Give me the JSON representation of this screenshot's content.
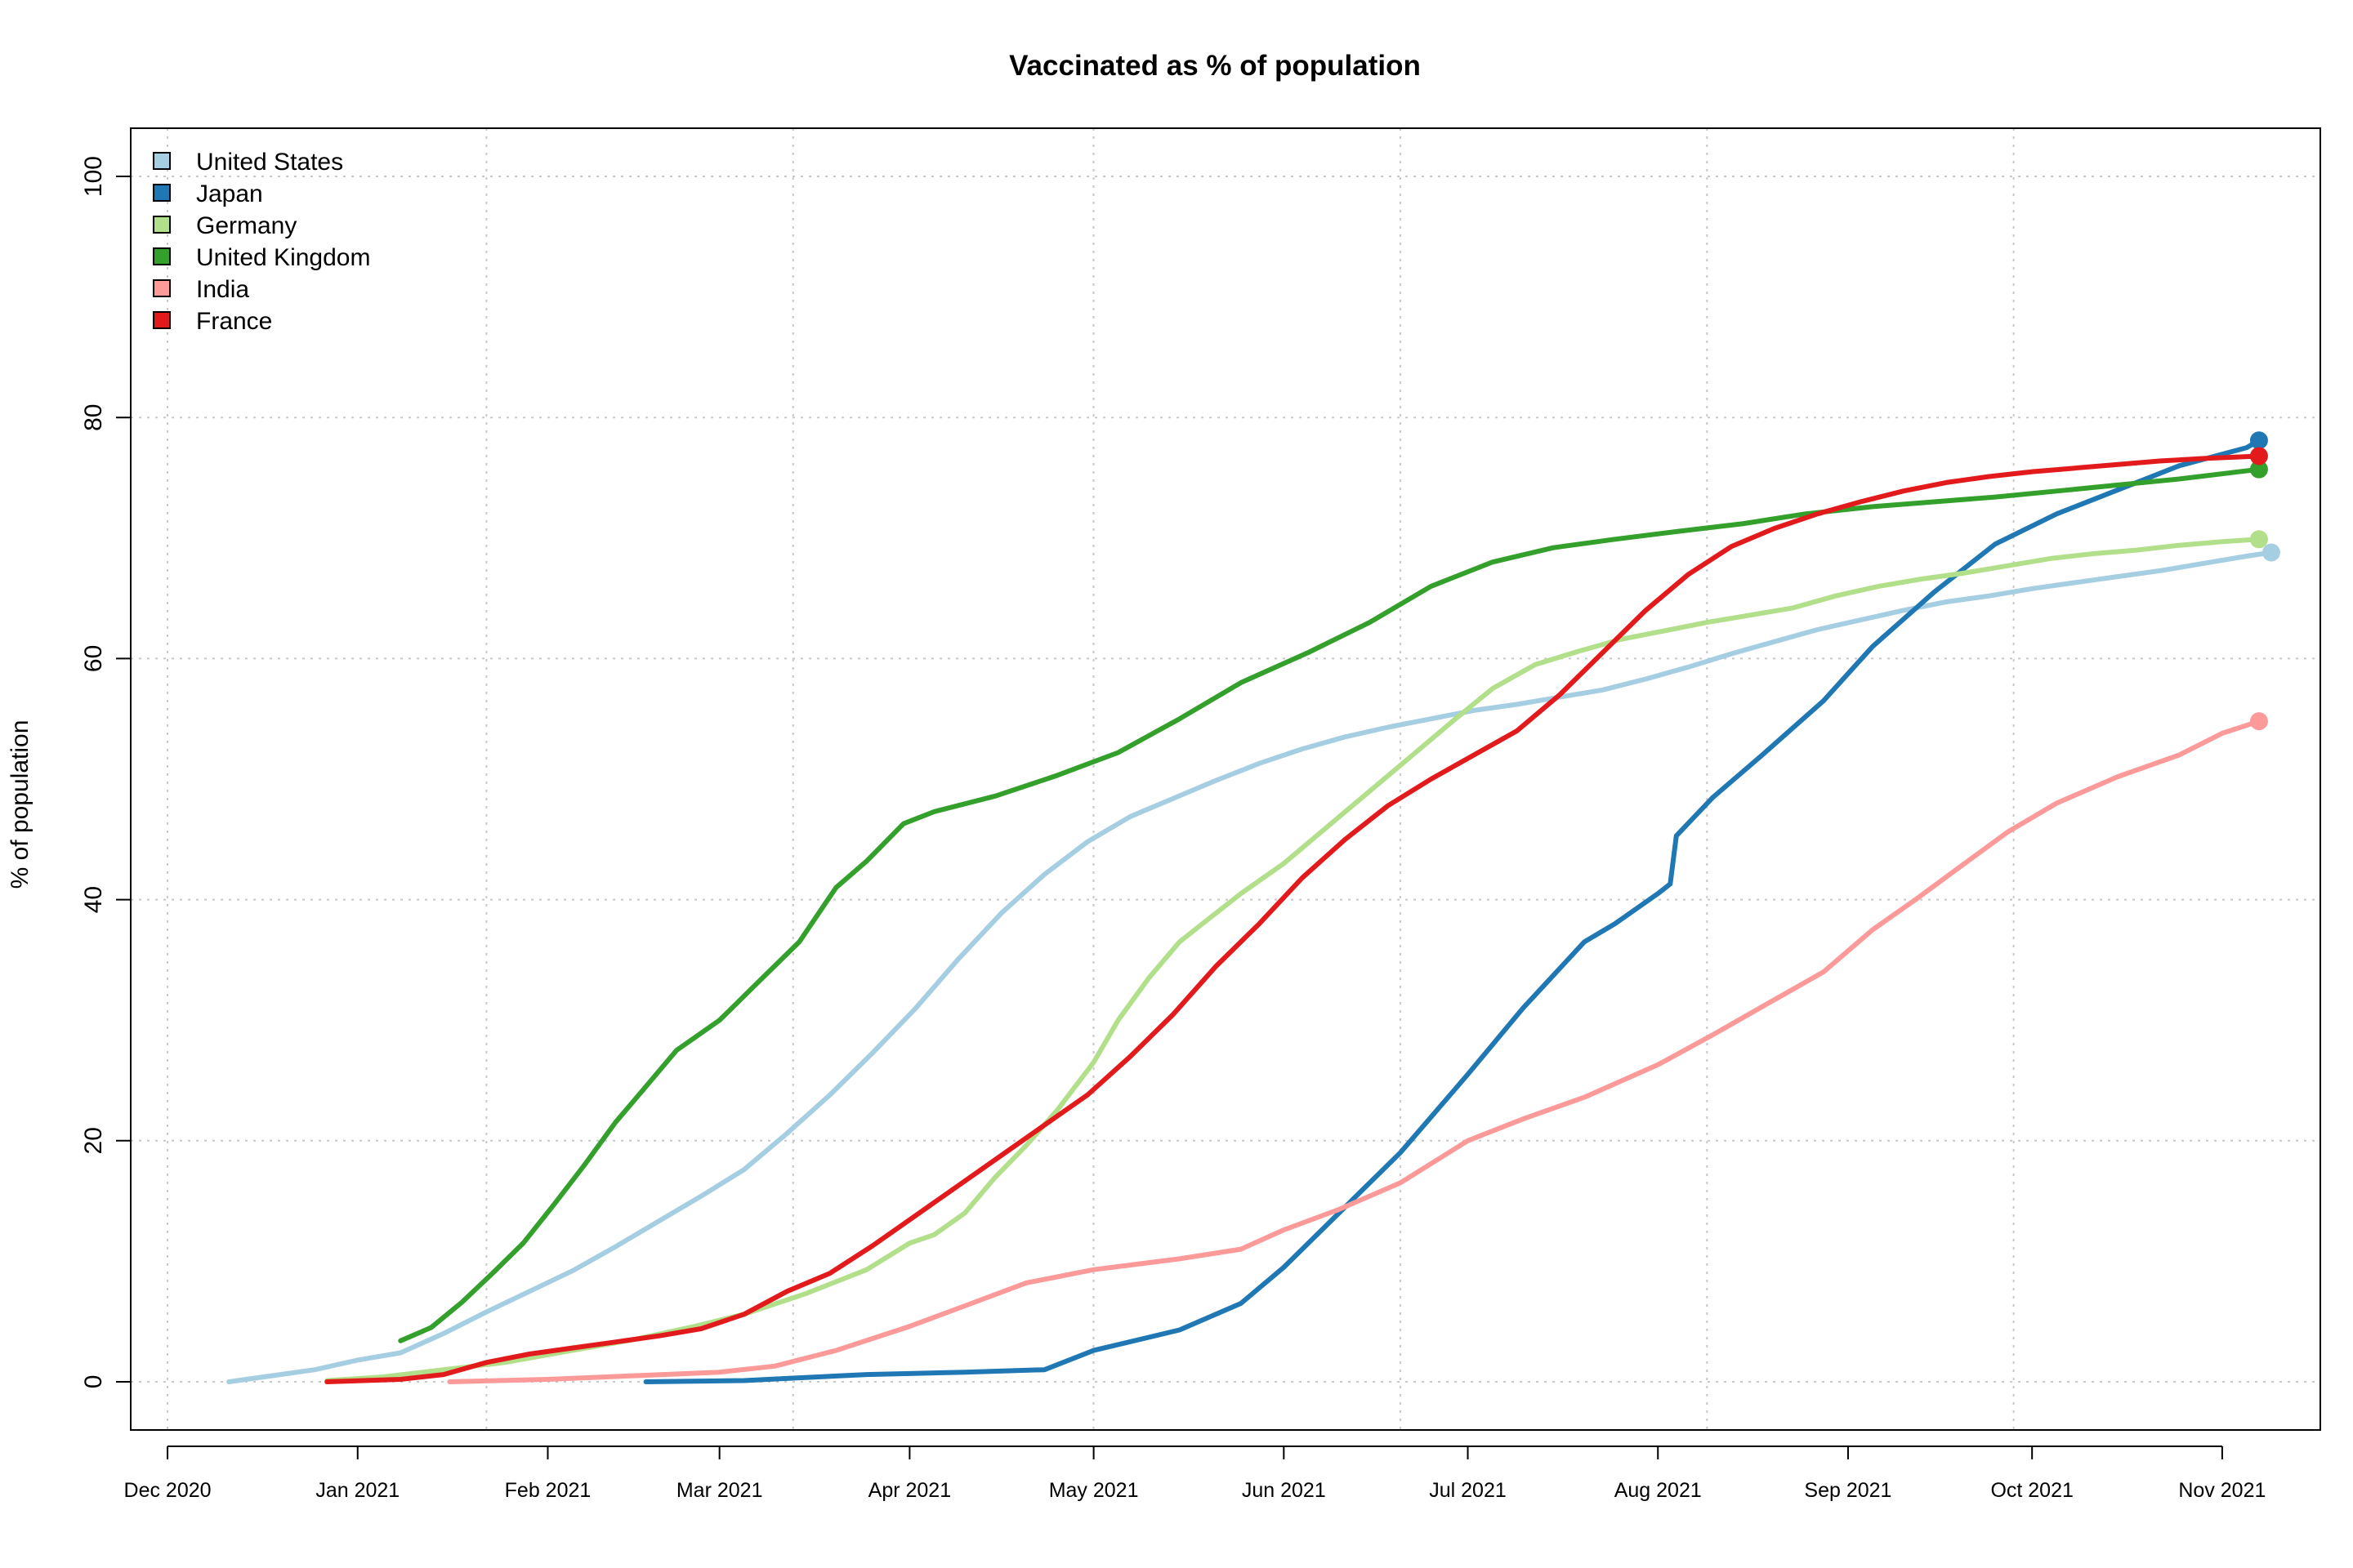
{
  "chart_data": {
    "type": "line",
    "title": "Vaccinated as % of population",
    "xlabel": "",
    "ylabel": "% of population",
    "x_type": "date",
    "xlim": [
      "2020-11-25",
      "2021-11-17"
    ],
    "ylim": [
      -4,
      104
    ],
    "y_ticks": [
      0,
      20,
      40,
      60,
      80,
      100
    ],
    "x_ticks": [
      {
        "date": "2020-12-01",
        "label": "Dec 2020"
      },
      {
        "date": "2021-01-01",
        "label": "Jan 2021"
      },
      {
        "date": "2021-02-01",
        "label": "Feb 2021"
      },
      {
        "date": "2021-03-01",
        "label": "Mar 2021"
      },
      {
        "date": "2021-04-01",
        "label": "Apr 2021"
      },
      {
        "date": "2021-05-01",
        "label": "May 2021"
      },
      {
        "date": "2021-06-01",
        "label": "Jun 2021"
      },
      {
        "date": "2021-07-01",
        "label": "Jul 2021"
      },
      {
        "date": "2021-08-01",
        "label": "Aug 2021"
      },
      {
        "date": "2021-09-01",
        "label": "Sep 2021"
      },
      {
        "date": "2021-10-01",
        "label": "Oct 2021"
      },
      {
        "date": "2021-11-01",
        "label": "Nov 2021"
      }
    ],
    "grid_x_dates": [
      "2020-12-01",
      "2021-01-22",
      "2021-03-13",
      "2021-05-01",
      "2021-06-20",
      "2021-08-09",
      "2021-09-28",
      "2021-11-17"
    ],
    "grid_y": [
      0,
      20,
      40,
      60,
      80,
      100
    ],
    "grid": true,
    "legend_position": "top-left",
    "series": [
      {
        "name": "United States",
        "color": "#a6cee3",
        "points": [
          [
            "2020-12-11",
            0
          ],
          [
            "2020-12-18",
            0.5
          ],
          [
            "2020-12-25",
            1.0
          ],
          [
            "2021-01-01",
            1.8
          ],
          [
            "2021-01-08",
            2.4
          ],
          [
            "2021-01-15",
            4.0
          ],
          [
            "2021-01-22",
            5.8
          ],
          [
            "2021-01-29",
            7.5
          ],
          [
            "2021-02-05",
            9.2
          ],
          [
            "2021-02-12",
            11.2
          ],
          [
            "2021-02-19",
            13.3
          ],
          [
            "2021-02-26",
            15.4
          ],
          [
            "2021-03-05",
            17.6
          ],
          [
            "2021-03-12",
            20.6
          ],
          [
            "2021-03-19",
            23.8
          ],
          [
            "2021-03-26",
            27.3
          ],
          [
            "2021-04-02",
            31.0
          ],
          [
            "2021-04-09",
            35.1
          ],
          [
            "2021-04-16",
            38.9
          ],
          [
            "2021-04-23",
            42.1
          ],
          [
            "2021-04-30",
            44.8
          ],
          [
            "2021-05-07",
            46.9
          ],
          [
            "2021-05-14",
            48.4
          ],
          [
            "2021-05-21",
            49.9
          ],
          [
            "2021-05-28",
            51.3
          ],
          [
            "2021-06-04",
            52.5
          ],
          [
            "2021-06-11",
            53.5
          ],
          [
            "2021-06-18",
            54.3
          ],
          [
            "2021-06-25",
            55.0
          ],
          [
            "2021-07-02",
            55.7
          ],
          [
            "2021-07-09",
            56.2
          ],
          [
            "2021-07-16",
            56.8
          ],
          [
            "2021-07-23",
            57.4
          ],
          [
            "2021-07-30",
            58.3
          ],
          [
            "2021-08-06",
            59.3
          ],
          [
            "2021-08-13",
            60.4
          ],
          [
            "2021-08-20",
            61.4
          ],
          [
            "2021-08-27",
            62.4
          ],
          [
            "2021-09-03",
            63.2
          ],
          [
            "2021-09-10",
            64.0
          ],
          [
            "2021-09-17",
            64.7
          ],
          [
            "2021-09-24",
            65.2
          ],
          [
            "2021-10-01",
            65.8
          ],
          [
            "2021-10-08",
            66.3
          ],
          [
            "2021-10-15",
            66.8
          ],
          [
            "2021-10-22",
            67.3
          ],
          [
            "2021-10-29",
            67.9
          ],
          [
            "2021-11-05",
            68.5
          ],
          [
            "2021-11-09",
            68.8
          ]
        ],
        "end_point": [
          "2021-11-09",
          68.8
        ]
      },
      {
        "name": "Japan",
        "color": "#1f78b4",
        "points": [
          [
            "2021-02-17",
            0
          ],
          [
            "2021-03-05",
            0.1
          ],
          [
            "2021-03-13",
            0.3
          ],
          [
            "2021-03-25",
            0.6
          ],
          [
            "2021-04-10",
            0.8
          ],
          [
            "2021-04-23",
            1.0
          ],
          [
            "2021-05-01",
            2.6
          ],
          [
            "2021-05-15",
            4.3
          ],
          [
            "2021-05-25",
            6.5
          ],
          [
            "2021-06-01",
            9.5
          ],
          [
            "2021-06-10",
            14.0
          ],
          [
            "2021-06-20",
            19.0
          ],
          [
            "2021-07-01",
            25.5
          ],
          [
            "2021-07-10",
            31.0
          ],
          [
            "2021-07-20",
            36.5
          ],
          [
            "2021-07-25",
            38.0
          ],
          [
            "2021-08-01",
            40.5
          ],
          [
            "2021-08-03",
            41.3
          ],
          [
            "2021-08-04",
            45.3
          ],
          [
            "2021-08-10",
            48.5
          ],
          [
            "2021-08-18",
            52.0
          ],
          [
            "2021-08-28",
            56.5
          ],
          [
            "2021-09-05",
            61.0
          ],
          [
            "2021-09-15",
            65.5
          ],
          [
            "2021-09-25",
            69.5
          ],
          [
            "2021-10-05",
            72.0
          ],
          [
            "2021-10-15",
            74.0
          ],
          [
            "2021-10-25",
            76.0
          ],
          [
            "2021-11-05",
            77.5
          ],
          [
            "2021-11-07",
            78.1
          ]
        ],
        "end_point": [
          "2021-11-07",
          78.1
        ]
      },
      {
        "name": "Germany",
        "color": "#b2df8a",
        "points": [
          [
            "2020-12-27",
            0.1
          ],
          [
            "2021-01-05",
            0.4
          ],
          [
            "2021-01-15",
            1.0
          ],
          [
            "2021-01-25",
            1.6
          ],
          [
            "2021-02-05",
            2.6
          ],
          [
            "2021-02-15",
            3.5
          ],
          [
            "2021-02-25",
            4.6
          ],
          [
            "2021-03-05",
            5.6
          ],
          [
            "2021-03-15",
            7.3
          ],
          [
            "2021-03-25",
            9.3
          ],
          [
            "2021-04-01",
            11.5
          ],
          [
            "2021-04-05",
            12.2
          ],
          [
            "2021-04-10",
            14.0
          ],
          [
            "2021-04-15",
            17.0
          ],
          [
            "2021-04-20",
            19.6
          ],
          [
            "2021-04-25",
            22.5
          ],
          [
            "2021-05-01",
            26.5
          ],
          [
            "2021-05-05",
            30.0
          ],
          [
            "2021-05-10",
            33.5
          ],
          [
            "2021-05-15",
            36.5
          ],
          [
            "2021-05-20",
            38.5
          ],
          [
            "2021-05-25",
            40.5
          ],
          [
            "2021-06-01",
            43.0
          ],
          [
            "2021-06-08",
            46.0
          ],
          [
            "2021-06-15",
            49.0
          ],
          [
            "2021-06-22",
            52.0
          ],
          [
            "2021-06-29",
            55.0
          ],
          [
            "2021-07-05",
            57.5
          ],
          [
            "2021-07-12",
            59.5
          ],
          [
            "2021-07-19",
            60.6
          ],
          [
            "2021-07-26",
            61.6
          ],
          [
            "2021-08-02",
            62.3
          ],
          [
            "2021-08-09",
            63.0
          ],
          [
            "2021-08-16",
            63.6
          ],
          [
            "2021-08-23",
            64.2
          ],
          [
            "2021-08-30",
            65.2
          ],
          [
            "2021-09-06",
            66.0
          ],
          [
            "2021-09-13",
            66.6
          ],
          [
            "2021-09-20",
            67.1
          ],
          [
            "2021-09-27",
            67.7
          ],
          [
            "2021-10-04",
            68.3
          ],
          [
            "2021-10-11",
            68.7
          ],
          [
            "2021-10-18",
            69.0
          ],
          [
            "2021-10-25",
            69.4
          ],
          [
            "2021-11-01",
            69.7
          ],
          [
            "2021-11-07",
            69.9
          ]
        ],
        "end_point": [
          "2021-11-07",
          69.9
        ]
      },
      {
        "name": "United Kingdom",
        "color": "#33a02c",
        "points": [
          [
            "2021-01-08",
            3.4
          ],
          [
            "2021-01-13",
            4.5
          ],
          [
            "2021-01-18",
            6.6
          ],
          [
            "2021-01-23",
            9.0
          ],
          [
            "2021-01-28",
            11.5
          ],
          [
            "2021-02-02",
            14.7
          ],
          [
            "2021-02-07",
            18.0
          ],
          [
            "2021-02-12",
            21.5
          ],
          [
            "2021-02-17",
            24.5
          ],
          [
            "2021-02-22",
            27.5
          ],
          [
            "2021-03-01",
            30.0
          ],
          [
            "2021-03-07",
            33.0
          ],
          [
            "2021-03-14",
            36.5
          ],
          [
            "2021-03-20",
            41.0
          ],
          [
            "2021-03-25",
            43.2
          ],
          [
            "2021-03-31",
            46.3
          ],
          [
            "2021-04-05",
            47.3
          ],
          [
            "2021-04-15",
            48.6
          ],
          [
            "2021-04-25",
            50.3
          ],
          [
            "2021-05-05",
            52.2
          ],
          [
            "2021-05-15",
            55.0
          ],
          [
            "2021-05-25",
            58.0
          ],
          [
            "2021-06-05",
            60.5
          ],
          [
            "2021-06-15",
            63.0
          ],
          [
            "2021-06-25",
            66.0
          ],
          [
            "2021-07-05",
            68.0
          ],
          [
            "2021-07-15",
            69.2
          ],
          [
            "2021-07-25",
            69.9
          ],
          [
            "2021-08-05",
            70.6
          ],
          [
            "2021-08-15",
            71.2
          ],
          [
            "2021-08-25",
            72.0
          ],
          [
            "2021-09-05",
            72.6
          ],
          [
            "2021-09-15",
            73.0
          ],
          [
            "2021-09-25",
            73.4
          ],
          [
            "2021-10-05",
            73.9
          ],
          [
            "2021-10-15",
            74.4
          ],
          [
            "2021-10-25",
            74.9
          ],
          [
            "2021-11-07",
            75.7
          ]
        ],
        "end_point": [
          "2021-11-07",
          75.7
        ]
      },
      {
        "name": "India",
        "color": "#fb9a99",
        "points": [
          [
            "2021-01-16",
            0
          ],
          [
            "2021-02-01",
            0.2
          ],
          [
            "2021-02-15",
            0.5
          ],
          [
            "2021-03-01",
            0.8
          ],
          [
            "2021-03-10",
            1.3
          ],
          [
            "2021-03-20",
            2.6
          ],
          [
            "2021-04-01",
            4.6
          ],
          [
            "2021-04-10",
            6.3
          ],
          [
            "2021-04-20",
            8.2
          ],
          [
            "2021-05-01",
            9.3
          ],
          [
            "2021-05-15",
            10.2
          ],
          [
            "2021-05-25",
            11.0
          ],
          [
            "2021-06-01",
            12.6
          ],
          [
            "2021-06-10",
            14.3
          ],
          [
            "2021-06-20",
            16.5
          ],
          [
            "2021-07-01",
            20.0
          ],
          [
            "2021-07-10",
            21.8
          ],
          [
            "2021-07-20",
            23.6
          ],
          [
            "2021-08-01",
            26.3
          ],
          [
            "2021-08-10",
            28.8
          ],
          [
            "2021-08-20",
            31.7
          ],
          [
            "2021-08-28",
            34.0
          ],
          [
            "2021-09-05",
            37.5
          ],
          [
            "2021-09-12",
            40.0
          ],
          [
            "2021-09-20",
            43.0
          ],
          [
            "2021-09-27",
            45.6
          ],
          [
            "2021-10-05",
            48.0
          ],
          [
            "2021-10-15",
            50.2
          ],
          [
            "2021-10-25",
            52.0
          ],
          [
            "2021-11-01",
            53.8
          ],
          [
            "2021-11-07",
            54.8
          ]
        ],
        "end_point": [
          "2021-11-07",
          54.8
        ]
      },
      {
        "name": "France",
        "color": "#e31a1c",
        "points": [
          [
            "2020-12-27",
            0
          ],
          [
            "2021-01-08",
            0.2
          ],
          [
            "2021-01-15",
            0.6
          ],
          [
            "2021-01-22",
            1.6
          ],
          [
            "2021-01-29",
            2.3
          ],
          [
            "2021-02-05",
            2.8
          ],
          [
            "2021-02-12",
            3.3
          ],
          [
            "2021-02-19",
            3.8
          ],
          [
            "2021-02-26",
            4.4
          ],
          [
            "2021-03-05",
            5.6
          ],
          [
            "2021-03-12",
            7.5
          ],
          [
            "2021-03-19",
            9.0
          ],
          [
            "2021-03-26",
            11.3
          ],
          [
            "2021-04-02",
            13.8
          ],
          [
            "2021-04-09",
            16.3
          ],
          [
            "2021-04-16",
            18.8
          ],
          [
            "2021-04-23",
            21.3
          ],
          [
            "2021-04-30",
            23.8
          ],
          [
            "2021-05-07",
            27.0
          ],
          [
            "2021-05-14",
            30.5
          ],
          [
            "2021-05-21",
            34.5
          ],
          [
            "2021-05-28",
            38.0
          ],
          [
            "2021-06-04",
            41.8
          ],
          [
            "2021-06-11",
            45.0
          ],
          [
            "2021-06-18",
            47.8
          ],
          [
            "2021-06-25",
            50.0
          ],
          [
            "2021-07-02",
            52.0
          ],
          [
            "2021-07-09",
            54.0
          ],
          [
            "2021-07-16",
            57.0
          ],
          [
            "2021-07-23",
            60.5
          ],
          [
            "2021-07-30",
            64.0
          ],
          [
            "2021-08-06",
            67.0
          ],
          [
            "2021-08-13",
            69.3
          ],
          [
            "2021-08-20",
            70.8
          ],
          [
            "2021-08-27",
            72.0
          ],
          [
            "2021-09-03",
            73.0
          ],
          [
            "2021-09-10",
            73.9
          ],
          [
            "2021-09-17",
            74.6
          ],
          [
            "2021-09-24",
            75.1
          ],
          [
            "2021-10-01",
            75.5
          ],
          [
            "2021-10-08",
            75.8
          ],
          [
            "2021-10-15",
            76.1
          ],
          [
            "2021-10-22",
            76.4
          ],
          [
            "2021-10-29",
            76.6
          ],
          [
            "2021-11-07",
            76.8
          ]
        ],
        "end_point": [
          "2021-11-07",
          76.8
        ]
      }
    ]
  }
}
